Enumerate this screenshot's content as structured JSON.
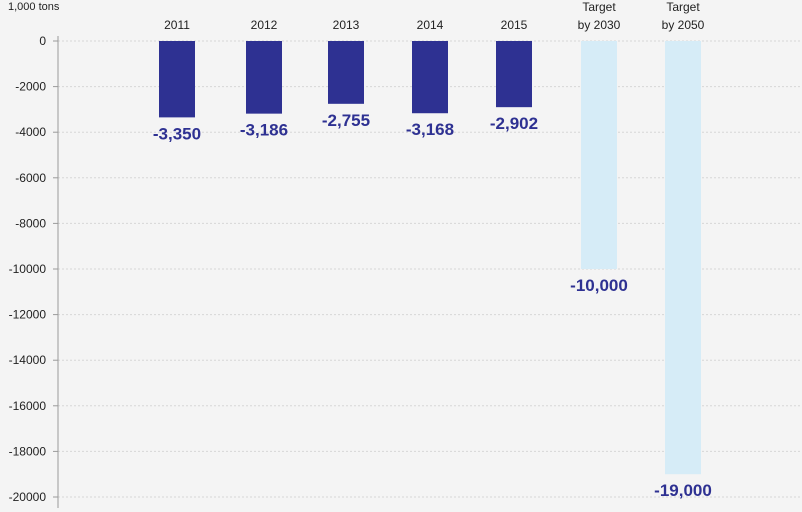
{
  "chart_data": {
    "type": "bar",
    "unit_label": "1,000 tons",
    "categories": [
      [
        "2011"
      ],
      [
        "2012"
      ],
      [
        "2013"
      ],
      [
        "2014"
      ],
      [
        "2015"
      ],
      [
        "Target",
        "by 2030"
      ],
      [
        "Target",
        "by 2050"
      ]
    ],
    "values": [
      -3350,
      -3186,
      -2755,
      -3168,
      -2902,
      -10000,
      -19000
    ],
    "data_labels": [
      "-3,350",
      "-3,186",
      "-2,755",
      "-3,168",
      "-2,902",
      "-10,000",
      "-19,000"
    ],
    "ylim": [
      -20000,
      0
    ],
    "yticks": [
      0,
      -2000,
      -4000,
      -6000,
      -8000,
      -10000,
      -12000,
      -14000,
      -16000,
      -18000,
      -20000
    ],
    "grid": true,
    "colors": {
      "actual": "#2e3192",
      "target": "#d6ecf7",
      "label": "#2e3192",
      "grid": "#d6d6d6",
      "axis": "#9a9a9a"
    },
    "is_target": [
      false,
      false,
      false,
      false,
      false,
      true,
      true
    ]
  }
}
